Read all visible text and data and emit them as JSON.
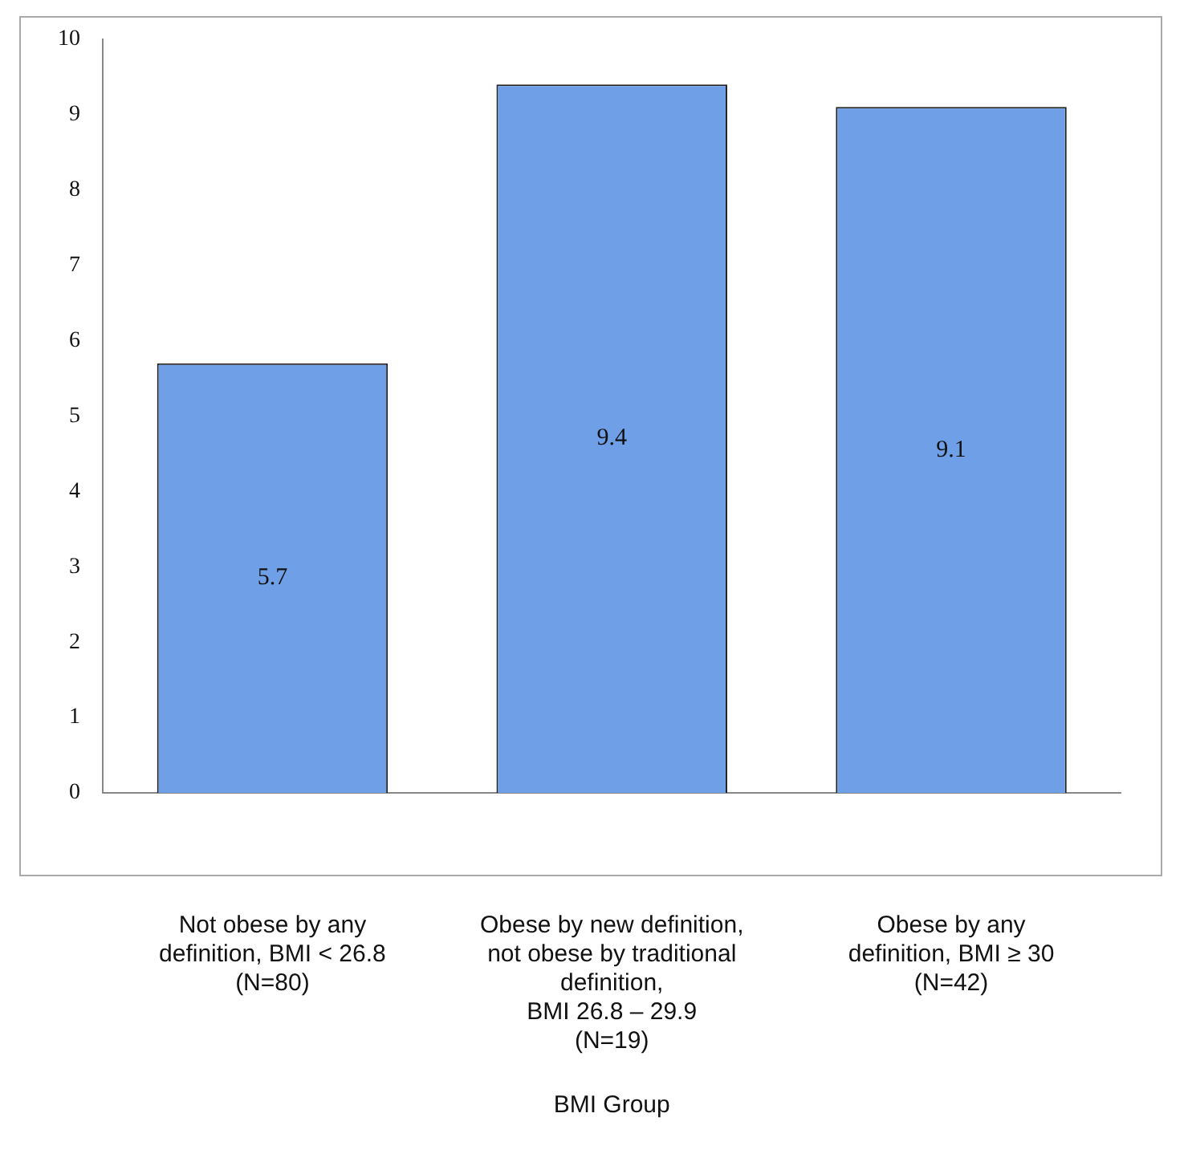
{
  "chart_data": {
    "type": "bar",
    "xlabel": "BMI Group",
    "categories": [
      "Not obese by any\ndefinition, BMI < 26.8\n(N=80)",
      "Obese by new definition,\nnot obese by traditional\ndefinition,\nBMI 26.8 – 29.9\n(N=19)",
      "Obese by any\ndefinition, BMI ≥ 30\n(N=42)"
    ],
    "values": [
      5.7,
      9.4,
      9.1
    ],
    "color": "#6f9fe6",
    "data_labels": true,
    "ylim": [
      0,
      10
    ],
    "yticks": [
      0,
      1,
      2,
      3,
      4,
      5,
      6,
      7,
      8,
      9,
      10
    ],
    "grid": false,
    "legend": false
  }
}
